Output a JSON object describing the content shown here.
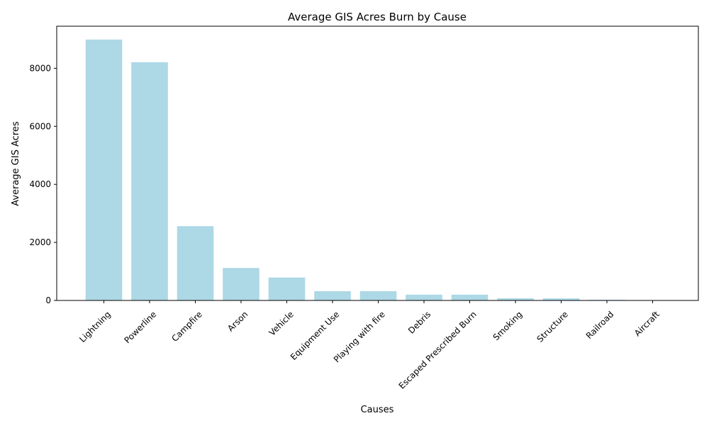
{
  "chart_data": {
    "type": "bar",
    "title": "Average GIS Acres Burn by Cause",
    "xlabel": "Causes",
    "ylabel": "Average GIS Acres",
    "categories": [
      "Lightning",
      "Powerline",
      "Campfire",
      "Arson",
      "Vehicle",
      "Equipment Use",
      "Playing with fire",
      "Debris",
      "Escaped Prescribed Burn",
      "Smoking",
      "Structure",
      "Railroad",
      "Aircraft"
    ],
    "values": [
      8990,
      8210,
      2560,
      1120,
      790,
      320,
      320,
      200,
      200,
      75,
      70,
      20,
      5
    ],
    "ylim": [
      0,
      9450
    ],
    "yticks": [
      0,
      2000,
      4000,
      6000,
      8000
    ],
    "bar_color": "#add8e6",
    "grid": false,
    "legend": "none"
  }
}
